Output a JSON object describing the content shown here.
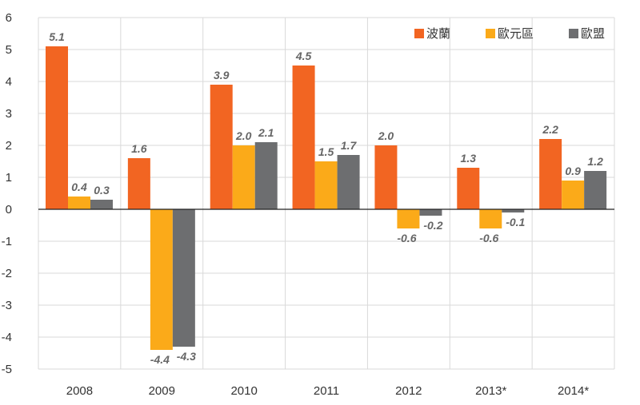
{
  "chart_data": {
    "type": "bar",
    "categories": [
      "2008",
      "2009",
      "2010",
      "2011",
      "2012",
      "2013*",
      "2014*"
    ],
    "series": [
      {
        "name": "波蘭",
        "color": "#f26522",
        "values": [
          5.1,
          1.6,
          3.9,
          4.5,
          2.0,
          1.3,
          2.2
        ],
        "labels": [
          "5.1",
          "1.6",
          "3.9",
          "4.5",
          "2.0",
          "1.3",
          "2.2"
        ]
      },
      {
        "name": "歐元區",
        "color": "#fbaa19",
        "values": [
          0.4,
          -4.4,
          2.0,
          1.5,
          -0.6,
          -0.6,
          0.9
        ],
        "labels": [
          "0.4",
          "-4.4",
          "2.0",
          "1.5",
          "-0.6",
          "-0.6",
          "0.9"
        ]
      },
      {
        "name": "歐盟",
        "color": "#6d6e70",
        "values": [
          0.3,
          -4.3,
          2.1,
          1.7,
          -0.2,
          -0.1,
          1.2
        ],
        "labels": [
          "0.3",
          "-4.3",
          "2.1",
          "1.7",
          "-0.2",
          "-0.1",
          "1.2"
        ]
      }
    ],
    "y_ticks": [
      "6",
      "5",
      "4",
      "3",
      "2",
      "1",
      "0",
      "-1",
      "-2",
      "-3",
      "-4",
      "-5"
    ],
    "ylim": [
      -5,
      6
    ],
    "grid": true,
    "legend_position": "top-right"
  }
}
